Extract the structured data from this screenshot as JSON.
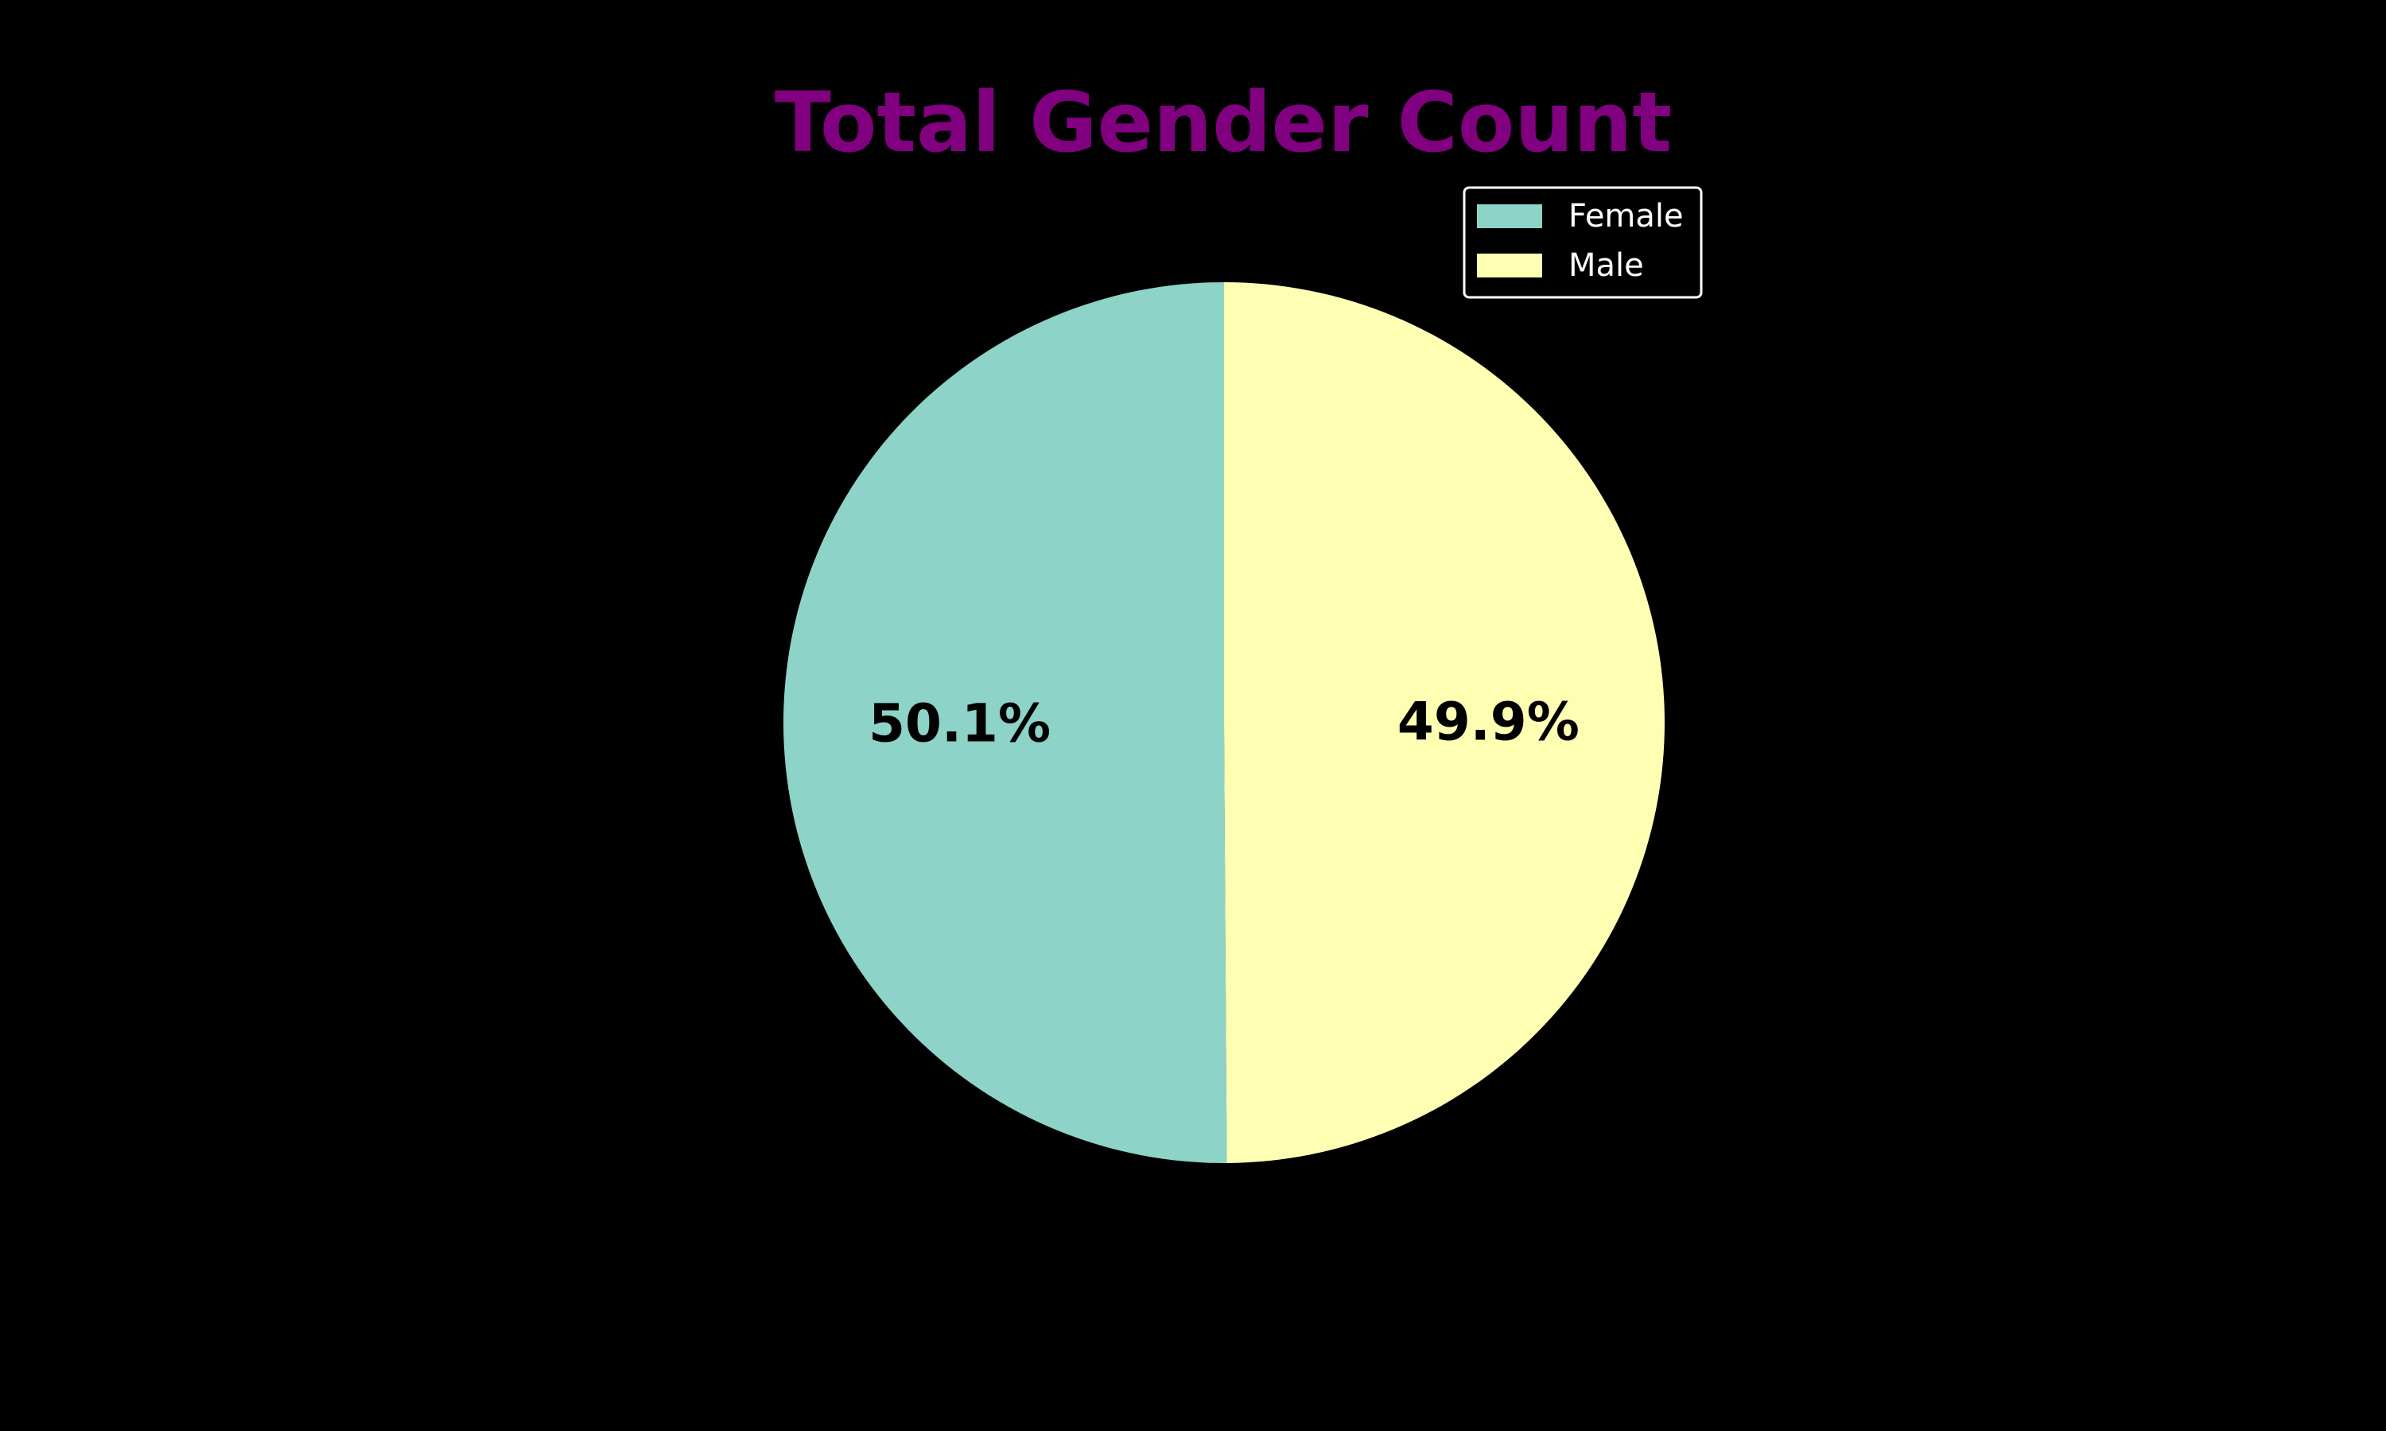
{
  "chart_data": {
    "type": "pie",
    "title": "Total Gender Count",
    "slices": [
      {
        "label": "Female",
        "value": 50.1,
        "display": "50.1%",
        "color": "#8dd3c7"
      },
      {
        "label": "Male",
        "value": 49.9,
        "display": "49.9%",
        "color": "#ffffb3"
      }
    ],
    "start_angle_deg": 90,
    "direction": "counterclockwise",
    "legend_position": "top-right",
    "colors": {
      "background": "#000000",
      "title": "#800080",
      "slice_label": "#000000",
      "legend_text": "#ffffff",
      "legend_border": "#ffffff"
    }
  }
}
